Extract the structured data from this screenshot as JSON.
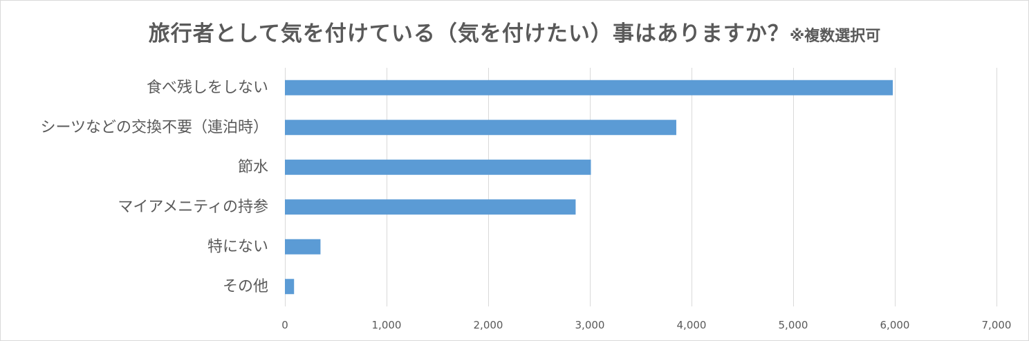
{
  "chart_data": {
    "type": "bar",
    "orientation": "horizontal",
    "title": "旅行者として気を付けている（気を付けたい）事はありますか？",
    "subtitle": "※複数選択可",
    "categories": [
      "食べ残しをしない",
      "シーツなどの交換不要（連泊時）",
      "節水",
      "マイアメニティの持参",
      "特にない",
      "その他"
    ],
    "values": [
      5980,
      3850,
      3010,
      2860,
      350,
      90
    ],
    "xlim": [
      0,
      7000
    ],
    "ticks": [
      0,
      1000,
      2000,
      3000,
      4000,
      5000,
      6000,
      7000
    ],
    "tick_labels": [
      "0",
      "1,000",
      "2,000",
      "3,000",
      "4,000",
      "5,000",
      "6,000",
      "7,000"
    ],
    "grid": "vertical",
    "legend": "none",
    "colors": {
      "bar": "#5b9bd5",
      "grid": "#d9d9d9",
      "text": "#595959"
    }
  }
}
